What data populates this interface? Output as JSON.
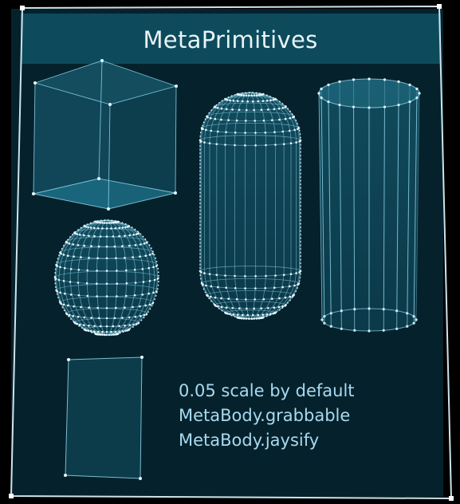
{
  "panel": {
    "title": "MetaPrimitives",
    "background_color": "#05222c",
    "header_color": "#0d4b5c",
    "frame_color": "#cfe3ea"
  },
  "primitives": [
    {
      "name": "cube"
    },
    {
      "name": "capsule"
    },
    {
      "name": "cylinder"
    },
    {
      "name": "sphere"
    },
    {
      "name": "plane"
    }
  ],
  "info_lines": [
    "0.05 scale by default",
    "MetaBody.grabbable",
    "MetaBody.jaysify"
  ],
  "wire_color": "#8fd6ec",
  "vertex_color": "#eaf7fb"
}
